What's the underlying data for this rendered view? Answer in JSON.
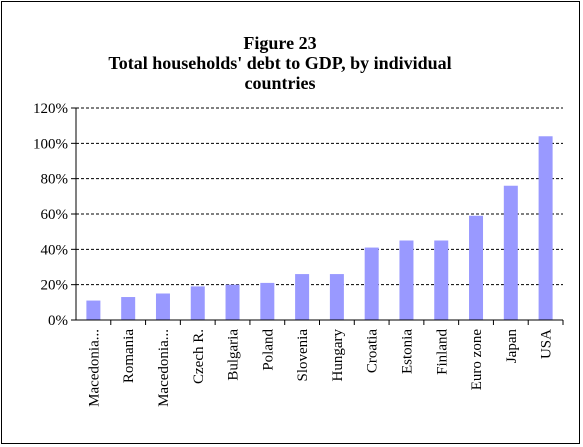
{
  "chart_data": {
    "type": "bar",
    "title_line1": "Figure 23",
    "title_line2": "Total households' debt to GDP, by individual",
    "title_line3": "countries",
    "categories": [
      "Macedonia...",
      "Romania",
      "Macedonia...",
      "Czech R.",
      "Bulgaria",
      "Poland",
      "Slovenia",
      "Hungary",
      "Croatia",
      "Estonia",
      "Finland",
      "Euro zone",
      "Japan",
      "USA"
    ],
    "values": [
      11,
      13,
      15,
      19,
      20,
      21,
      26,
      26,
      41,
      45,
      45,
      59,
      76,
      104
    ],
    "yticks": [
      "0%",
      "20%",
      "40%",
      "60%",
      "80%",
      "100%",
      "120%"
    ],
    "ylim": [
      0,
      120
    ],
    "bar_color": "#9999ff",
    "grid": "dashed horizontal"
  }
}
